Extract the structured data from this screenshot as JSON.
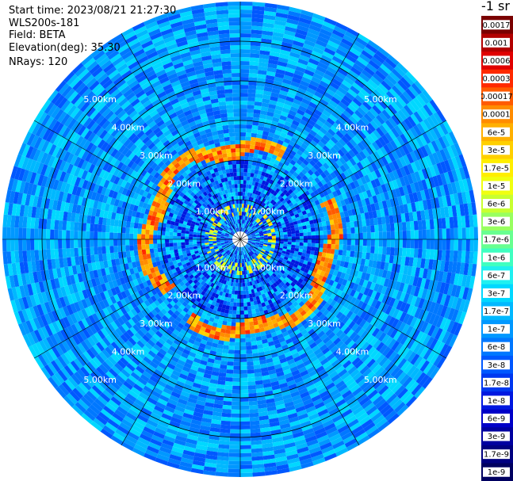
{
  "header": {
    "start_time": "Start time: 2023/08/21 21:27:30",
    "instrument": "WLS200s-181",
    "field": "Field: BETA",
    "elevation": "Elevation(deg): 35.30",
    "nrays": "NRays: 120"
  },
  "colorbar": {
    "unit_label": "-1 sr",
    "ticks": [
      "0.0017",
      "0.001",
      "0.0006",
      "0.0003",
      "0.00017",
      "0.0001",
      "6e-5",
      "3e-5",
      "1.7e-5",
      "1e-5",
      "6e-6",
      "3e-6",
      "1.7e-6",
      "1e-6",
      "6e-7",
      "3e-7",
      "1.7e-7",
      "1e-7",
      "6e-8",
      "3e-8",
      "1.7e-8",
      "1e-8",
      "6e-9",
      "3e-9",
      "1.7e-9",
      "1e-9"
    ],
    "colors": [
      "#7a0000",
      "#b20000",
      "#e00000",
      "#ff2a00",
      "#ff5a00",
      "#ff8c00",
      "#ffb000",
      "#ffd000",
      "#ffee00",
      "#f0ff10",
      "#c8ff30",
      "#98ff60",
      "#68ff90",
      "#40ffc0",
      "#20f0f0",
      "#00d8ff",
      "#00b8ff",
      "#0098ff",
      "#0078ff",
      "#0058ff",
      "#0038f0",
      "#0018e0",
      "#0000c8",
      "#0000a0",
      "#000080",
      "#000060"
    ]
  },
  "chart_data": {
    "type": "heatmap",
    "projection": "polar-ppi",
    "nrays": 120,
    "range_rings_km": [
      1.0,
      2.0,
      3.0,
      4.0,
      5.0
    ],
    "range_ring_labels": [
      "1.00km",
      "2.00km",
      "3.00km",
      "4.00km",
      "5.00km"
    ],
    "max_range_km": 6.0,
    "background_level_sr": 1e-07,
    "aerosol_layer_km": [
      2.1,
      2.5
    ],
    "aerosol_layer_level_sr": 6e-05,
    "inner_layer_km": [
      0.6,
      0.9
    ],
    "inner_layer_level_sr": 1e-05,
    "grid": true
  }
}
